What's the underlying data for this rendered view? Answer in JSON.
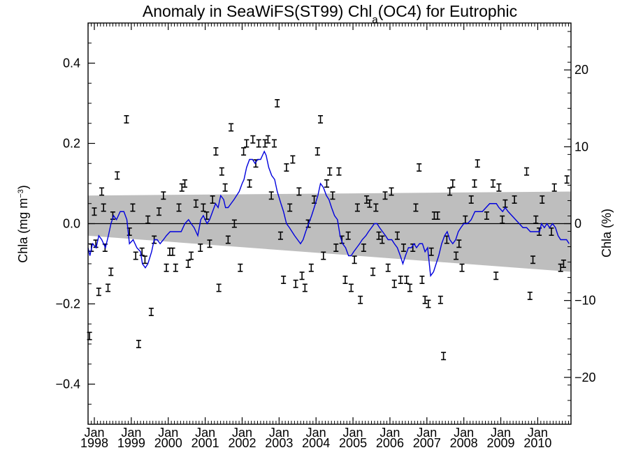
{
  "chart_data": {
    "type": "scatter",
    "title_main": "Anomaly in SeaWiFS(ST99) Chl",
    "title_sub": "a",
    "title_end": "(OC4) for Eutrophic",
    "ylabel_left_main": "Chla (mg m",
    "ylabel_left_sup": "−3",
    "ylabel_left_end": ")",
    "ylabel_right": "Chla (%)",
    "xlim": [
      1997.83,
      2010.9
    ],
    "ylim": [
      -0.5,
      0.5
    ],
    "ylim_right": [
      -26.1,
      26.1
    ],
    "x_ticks": [
      {
        "x": 1998,
        "month": "Jan",
        "year": "1998"
      },
      {
        "x": 1999,
        "month": "Jan",
        "year": "1999"
      },
      {
        "x": 2000,
        "month": "Jan",
        "year": "2000"
      },
      {
        "x": 2001,
        "month": "Jan",
        "year": "2001"
      },
      {
        "x": 2002,
        "month": "Jan",
        "year": "2002"
      },
      {
        "x": 2003,
        "month": "Jan",
        "year": "2003"
      },
      {
        "x": 2004,
        "month": "Jan",
        "year": "2004"
      },
      {
        "x": 2005,
        "month": "Jan",
        "year": "2005"
      },
      {
        "x": 2006,
        "month": "Jan",
        "year": "2006"
      },
      {
        "x": 2007,
        "month": "Jan",
        "year": "2007"
      },
      {
        "x": 2008,
        "month": "Jan",
        "year": "2008"
      },
      {
        "x": 2009,
        "month": "Jan",
        "year": "2009"
      },
      {
        "x": 2010,
        "month": "Jan",
        "year": "2010"
      }
    ],
    "y_ticks_left": [
      {
        "v": -0.4,
        "label": "−0.4"
      },
      {
        "v": -0.2,
        "label": "−0.2"
      },
      {
        "v": 0.0,
        "label": "0.0"
      },
      {
        "v": 0.2,
        "label": "0.2"
      },
      {
        "v": 0.4,
        "label": "0.4"
      }
    ],
    "y_ticks_right": [
      {
        "v": -20,
        "label": "−20"
      },
      {
        "v": -10,
        "label": "−10"
      },
      {
        "v": 0,
        "label": "0"
      },
      {
        "v": 10,
        "label": "10"
      },
      {
        "v": 20,
        "label": "20"
      }
    ],
    "confidence_band": {
      "start": [
        1997.83,
        -0.03,
        0.07
      ],
      "end": [
        2010.9,
        -0.12,
        0.08
      ]
    },
    "zero_line": 0,
    "points": [
      [
        1997.87,
        -0.28
      ],
      [
        1997.92,
        -0.06
      ],
      [
        1998.0,
        0.03
      ],
      [
        1998.04,
        -0.05
      ],
      [
        1998.12,
        -0.17
      ],
      [
        1998.2,
        0.08
      ],
      [
        1998.25,
        0.04
      ],
      [
        1998.29,
        -0.06
      ],
      [
        1998.37,
        -0.16
      ],
      [
        1998.45,
        -0.12
      ],
      [
        1998.5,
        0.02
      ],
      [
        1998.62,
        0.12
      ],
      [
        1998.87,
        0.26
      ],
      [
        1998.95,
        -0.02
      ],
      [
        1999.04,
        0.04
      ],
      [
        1999.12,
        -0.08
      ],
      [
        1999.2,
        -0.3
      ],
      [
        1999.29,
        -0.07
      ],
      [
        1999.37,
        -0.09
      ],
      [
        1999.45,
        0.01
      ],
      [
        1999.54,
        -0.22
      ],
      [
        1999.62,
        -0.04
      ],
      [
        1999.75,
        0.03
      ],
      [
        1999.87,
        0.07
      ],
      [
        1999.95,
        -0.11
      ],
      [
        2000.04,
        -0.07
      ],
      [
        2000.12,
        -0.07
      ],
      [
        2000.2,
        -0.11
      ],
      [
        2000.29,
        0.04
      ],
      [
        2000.37,
        0.09
      ],
      [
        2000.45,
        0.1
      ],
      [
        2000.54,
        -0.1
      ],
      [
        2000.62,
        -0.08
      ],
      [
        2000.75,
        0.05
      ],
      [
        2000.87,
        -0.06
      ],
      [
        2000.95,
        0.04
      ],
      [
        2001.04,
        0.02
      ],
      [
        2001.12,
        -0.05
      ],
      [
        2001.2,
        0.06
      ],
      [
        2001.29,
        0.18
      ],
      [
        2001.37,
        -0.16
      ],
      [
        2001.45,
        0.13
      ],
      [
        2001.54,
        0.09
      ],
      [
        2001.62,
        -0.04
      ],
      [
        2001.7,
        0.24
      ],
      [
        2001.79,
        0.0
      ],
      [
        2001.95,
        -0.11
      ],
      [
        2002.04,
        0.18
      ],
      [
        2002.12,
        0.2
      ],
      [
        2002.2,
        0.1
      ],
      [
        2002.29,
        0.21
      ],
      [
        2002.37,
        0.15
      ],
      [
        2002.45,
        0.2
      ],
      [
        2002.62,
        0.2
      ],
      [
        2002.7,
        0.21
      ],
      [
        2002.79,
        0.07
      ],
      [
        2002.87,
        0.2
      ],
      [
        2002.95,
        0.3
      ],
      [
        2003.04,
        -0.03
      ],
      [
        2003.12,
        -0.14
      ],
      [
        2003.2,
        0.14
      ],
      [
        2003.29,
        0.04
      ],
      [
        2003.37,
        0.16
      ],
      [
        2003.45,
        -0.15
      ],
      [
        2003.54,
        0.08
      ],
      [
        2003.62,
        -0.13
      ],
      [
        2003.7,
        -0.16
      ],
      [
        2003.79,
        0.0
      ],
      [
        2003.87,
        -0.11
      ],
      [
        2003.95,
        0.06
      ],
      [
        2004.04,
        0.18
      ],
      [
        2004.12,
        0.26
      ],
      [
        2004.2,
        -0.08
      ],
      [
        2004.29,
        0.1
      ],
      [
        2004.37,
        0.13
      ],
      [
        2004.45,
        0.07
      ],
      [
        2004.54,
        -0.06
      ],
      [
        2004.62,
        0.13
      ],
      [
        2004.7,
        -0.04
      ],
      [
        2004.79,
        -0.14
      ],
      [
        2004.87,
        -0.03
      ],
      [
        2004.95,
        -0.16
      ],
      [
        2005.04,
        -0.09
      ],
      [
        2005.12,
        0.04
      ],
      [
        2005.2,
        -0.19
      ],
      [
        2005.29,
        -0.06
      ],
      [
        2005.37,
        0.06
      ],
      [
        2005.45,
        0.05
      ],
      [
        2005.54,
        -0.12
      ],
      [
        2005.62,
        0.04
      ],
      [
        2005.7,
        -0.03
      ],
      [
        2005.79,
        -0.04
      ],
      [
        2005.87,
        0.07
      ],
      [
        2005.95,
        -0.11
      ],
      [
        2006.04,
        0.08
      ],
      [
        2006.12,
        -0.15
      ],
      [
        2006.2,
        -0.03
      ],
      [
        2006.29,
        -0.14
      ],
      [
        2006.37,
        -0.06
      ],
      [
        2006.45,
        -0.14
      ],
      [
        2006.54,
        -0.16
      ],
      [
        2006.62,
        -0.06
      ],
      [
        2006.7,
        0.04
      ],
      [
        2006.79,
        0.14
      ],
      [
        2006.87,
        -0.14
      ],
      [
        2006.95,
        -0.19
      ],
      [
        2007.04,
        -0.2
      ],
      [
        2007.12,
        -0.07
      ],
      [
        2007.2,
        0.02
      ],
      [
        2007.29,
        0.02
      ],
      [
        2007.37,
        -0.19
      ],
      [
        2007.45,
        -0.33
      ],
      [
        2007.54,
        -0.04
      ],
      [
        2007.62,
        0.08
      ],
      [
        2007.7,
        0.1
      ],
      [
        2007.79,
        -0.08
      ],
      [
        2007.87,
        -0.05
      ],
      [
        2007.95,
        -0.11
      ],
      [
        2008.04,
        0.01
      ],
      [
        2008.2,
        0.06
      ],
      [
        2008.29,
        0.1
      ],
      [
        2008.37,
        0.15
      ],
      [
        2008.62,
        0.02
      ],
      [
        2008.79,
        0.1
      ],
      [
        2008.87,
        -0.13
      ],
      [
        2008.95,
        0.09
      ],
      [
        2009.04,
        0.01
      ],
      [
        2009.12,
        0.05
      ],
      [
        2009.37,
        0.06
      ],
      [
        2009.7,
        0.13
      ],
      [
        2009.79,
        -0.18
      ],
      [
        2009.87,
        -0.09
      ],
      [
        2009.95,
        0.01
      ],
      [
        2010.04,
        -0.02
      ],
      [
        2010.12,
        0.06
      ],
      [
        2010.37,
        -0.02
      ],
      [
        2010.45,
        0.09
      ],
      [
        2010.62,
        -0.11
      ],
      [
        2010.7,
        -0.1
      ],
      [
        2010.79,
        0.11
      ]
    ],
    "running_mean": [
      [
        1997.83,
        -0.06
      ],
      [
        1997.88,
        -0.08
      ],
      [
        1997.95,
        -0.05
      ],
      [
        1998.05,
        -0.06
      ],
      [
        1998.12,
        -0.03
      ],
      [
        1998.2,
        -0.04
      ],
      [
        1998.3,
        -0.06
      ],
      [
        1998.38,
        -0.03
      ],
      [
        1998.45,
        0.0
      ],
      [
        1998.52,
        0.02
      ],
      [
        1998.6,
        0.01
      ],
      [
        1998.7,
        0.03
      ],
      [
        1998.8,
        0.03
      ],
      [
        1998.88,
        0.01
      ],
      [
        1998.95,
        -0.05
      ],
      [
        1999.05,
        -0.04
      ],
      [
        1999.15,
        -0.06
      ],
      [
        1999.25,
        -0.07
      ],
      [
        1999.3,
        -0.1
      ],
      [
        1999.38,
        -0.11
      ],
      [
        1999.45,
        -0.1
      ],
      [
        1999.55,
        -0.07
      ],
      [
        1999.62,
        -0.04
      ],
      [
        1999.7,
        -0.04
      ],
      [
        1999.78,
        -0.05
      ],
      [
        1999.87,
        -0.04
      ],
      [
        1999.95,
        -0.03
      ],
      [
        2000.05,
        -0.02
      ],
      [
        2000.15,
        -0.02
      ],
      [
        2000.25,
        -0.02
      ],
      [
        2000.35,
        -0.02
      ],
      [
        2000.45,
        0.0
      ],
      [
        2000.55,
        0.01
      ],
      [
        2000.62,
        0.0
      ],
      [
        2000.7,
        -0.01
      ],
      [
        2000.8,
        -0.03
      ],
      [
        2000.88,
        0.01
      ],
      [
        2000.95,
        0.02
      ],
      [
        2001.05,
        0.0
      ],
      [
        2001.12,
        0.01
      ],
      [
        2001.2,
        0.03
      ],
      [
        2001.28,
        0.05
      ],
      [
        2001.35,
        0.04
      ],
      [
        2001.42,
        0.07
      ],
      [
        2001.5,
        0.06
      ],
      [
        2001.55,
        0.04
      ],
      [
        2001.62,
        0.04
      ],
      [
        2001.7,
        0.05
      ],
      [
        2001.78,
        0.06
      ],
      [
        2001.85,
        0.07
      ],
      [
        2001.92,
        0.08
      ],
      [
        2002.0,
        0.1
      ],
      [
        2002.05,
        0.11
      ],
      [
        2002.12,
        0.14
      ],
      [
        2002.2,
        0.16
      ],
      [
        2002.28,
        0.16
      ],
      [
        2002.35,
        0.15
      ],
      [
        2002.42,
        0.16
      ],
      [
        2002.5,
        0.16
      ],
      [
        2002.55,
        0.17
      ],
      [
        2002.6,
        0.18
      ],
      [
        2002.65,
        0.17
      ],
      [
        2002.72,
        0.14
      ],
      [
        2002.8,
        0.12
      ],
      [
        2002.88,
        0.11
      ],
      [
        2002.95,
        0.08
      ],
      [
        2003.05,
        0.05
      ],
      [
        2003.12,
        0.03
      ],
      [
        2003.2,
        0.0
      ],
      [
        2003.28,
        -0.01
      ],
      [
        2003.35,
        -0.02
      ],
      [
        2003.42,
        -0.03
      ],
      [
        2003.5,
        -0.04
      ],
      [
        2003.58,
        -0.05
      ],
      [
        2003.65,
        -0.04
      ],
      [
        2003.72,
        -0.02
      ],
      [
        2003.8,
        0.0
      ],
      [
        2003.88,
        0.02
      ],
      [
        2003.95,
        0.04
      ],
      [
        2004.05,
        0.07
      ],
      [
        2004.12,
        0.1
      ],
      [
        2004.2,
        0.09
      ],
      [
        2004.28,
        0.07
      ],
      [
        2004.35,
        0.06
      ],
      [
        2004.42,
        0.04
      ],
      [
        2004.5,
        0.02
      ],
      [
        2004.58,
        0.01
      ],
      [
        2004.65,
        -0.03
      ],
      [
        2004.72,
        -0.05
      ],
      [
        2004.8,
        -0.06
      ],
      [
        2004.88,
        -0.08
      ],
      [
        2004.95,
        -0.08
      ],
      [
        2005.02,
        -0.07
      ],
      [
        2005.1,
        -0.06
      ],
      [
        2005.18,
        -0.05
      ],
      [
        2005.25,
        -0.04
      ],
      [
        2005.35,
        -0.03
      ],
      [
        2005.42,
        -0.02
      ],
      [
        2005.5,
        -0.01
      ],
      [
        2005.58,
        0.0
      ],
      [
        2005.65,
        0.0
      ],
      [
        2005.72,
        -0.01
      ],
      [
        2005.8,
        -0.02
      ],
      [
        2005.88,
        -0.03
      ],
      [
        2005.95,
        -0.04
      ],
      [
        2006.05,
        -0.04
      ],
      [
        2006.12,
        -0.05
      ],
      [
        2006.2,
        -0.06
      ],
      [
        2006.28,
        -0.08
      ],
      [
        2006.35,
        -0.1
      ],
      [
        2006.42,
        -0.08
      ],
      [
        2006.5,
        -0.06
      ],
      [
        2006.58,
        -0.06
      ],
      [
        2006.65,
        -0.05
      ],
      [
        2006.72,
        -0.06
      ],
      [
        2006.8,
        -0.05
      ],
      [
        2006.88,
        -0.05
      ],
      [
        2006.95,
        -0.07
      ],
      [
        2007.02,
        -0.06
      ],
      [
        2007.1,
        -0.13
      ],
      [
        2007.18,
        -0.12
      ],
      [
        2007.25,
        -0.1
      ],
      [
        2007.32,
        -0.08
      ],
      [
        2007.4,
        -0.05
      ],
      [
        2007.48,
        -0.03
      ],
      [
        2007.55,
        -0.02
      ],
      [
        2007.62,
        -0.04
      ],
      [
        2007.7,
        -0.05
      ],
      [
        2007.78,
        -0.04
      ],
      [
        2007.85,
        -0.02
      ],
      [
        2007.92,
        -0.01
      ],
      [
        2008.0,
        0.0
      ],
      [
        2008.1,
        0.0
      ],
      [
        2008.2,
        0.01
      ],
      [
        2008.3,
        0.03
      ],
      [
        2008.4,
        0.03
      ],
      [
        2008.5,
        0.03
      ],
      [
        2008.6,
        0.04
      ],
      [
        2008.7,
        0.05
      ],
      [
        2008.8,
        0.05
      ],
      [
        2008.88,
        0.05
      ],
      [
        2008.95,
        0.04
      ],
      [
        2009.05,
        0.03
      ],
      [
        2009.12,
        0.04
      ],
      [
        2009.2,
        0.03
      ],
      [
        2009.3,
        0.02
      ],
      [
        2009.4,
        0.01
      ],
      [
        2009.5,
        0.0
      ],
      [
        2009.6,
        -0.01
      ],
      [
        2009.7,
        -0.01
      ],
      [
        2009.8,
        -0.02
      ],
      [
        2009.88,
        -0.02
      ],
      [
        2009.95,
        -0.02
      ],
      [
        2010.05,
        -0.02
      ],
      [
        2010.1,
        0.0
      ],
      [
        2010.18,
        -0.01
      ],
      [
        2010.25,
        0.0
      ],
      [
        2010.32,
        -0.01
      ],
      [
        2010.4,
        0.0
      ],
      [
        2010.48,
        -0.01
      ],
      [
        2010.55,
        -0.03
      ],
      [
        2010.62,
        -0.04
      ],
      [
        2010.7,
        -0.04
      ],
      [
        2010.78,
        -0.04
      ],
      [
        2010.85,
        -0.05
      ]
    ],
    "error_half_width": 0.009,
    "band_color": "#bebebe",
    "line_color": "#0000dd",
    "marker_color": "#000000",
    "grid": false,
    "legend": "none"
  }
}
